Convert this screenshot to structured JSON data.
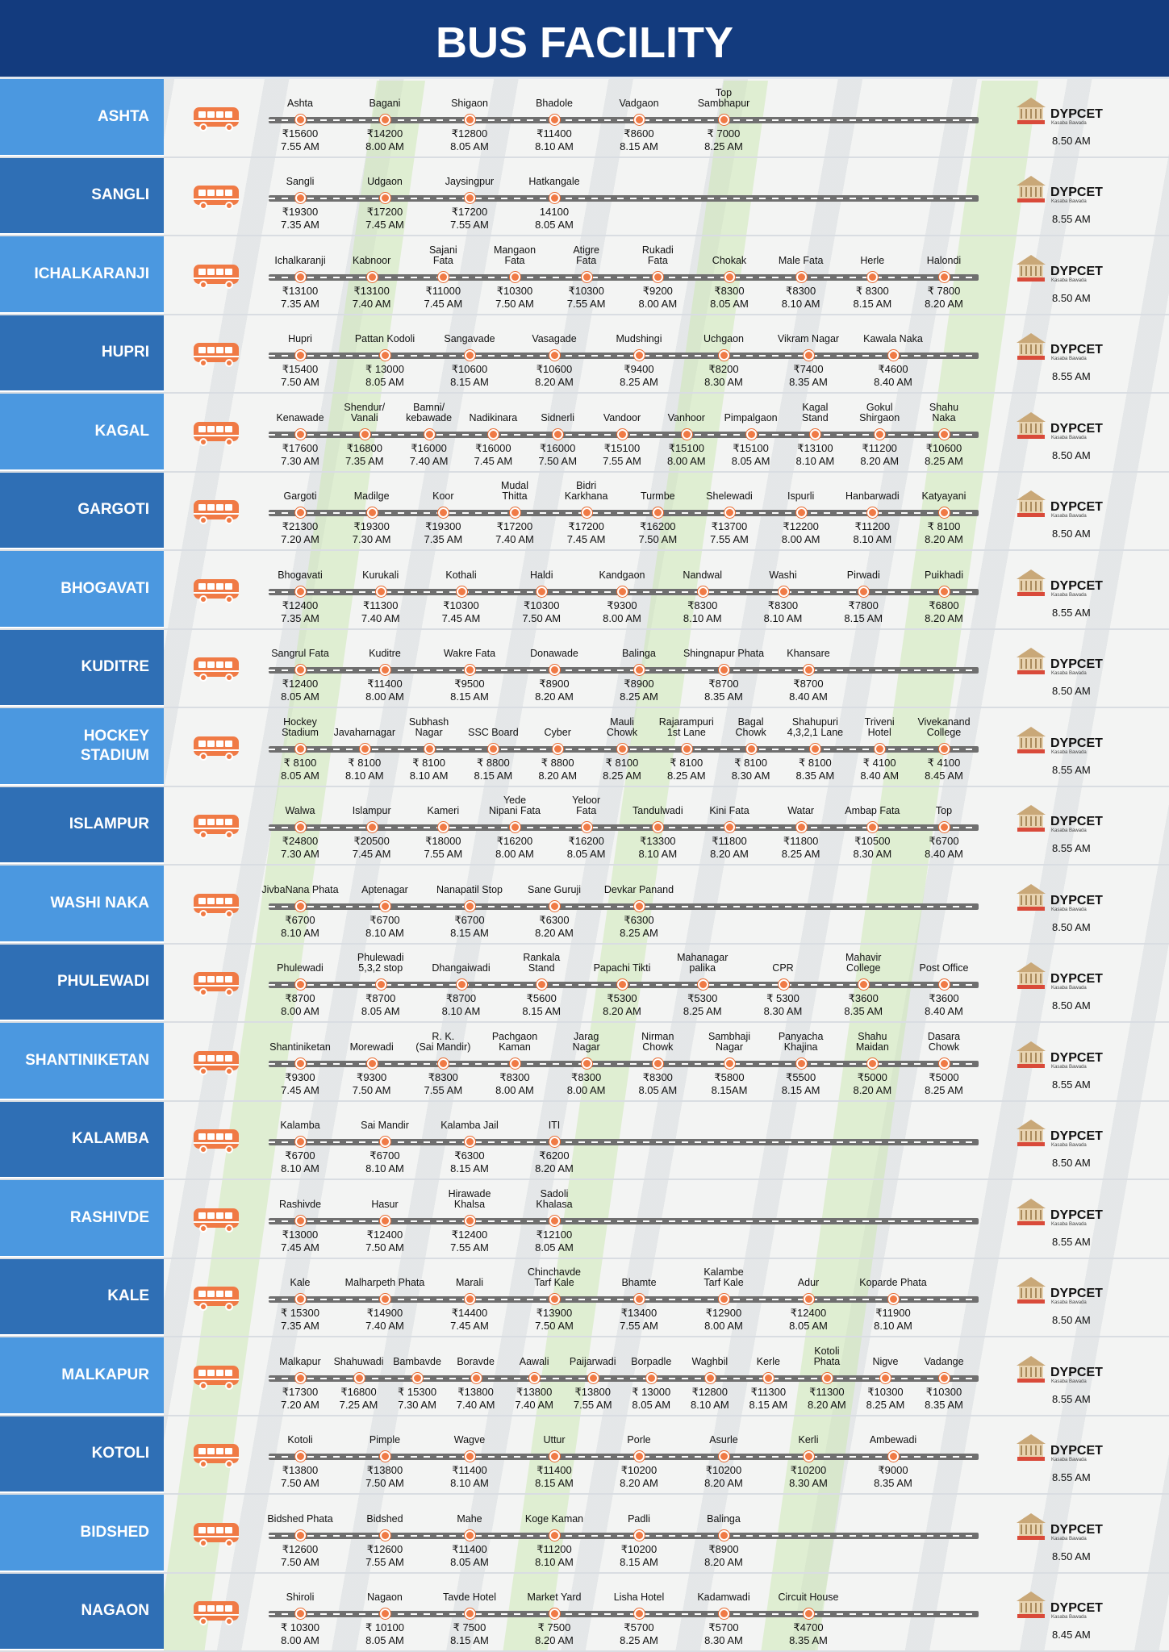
{
  "title": "BUS FACILITY",
  "destination": {
    "name": "DYPCET",
    "place": "Kasaba Bawada"
  },
  "routes": [
    {
      "name": "ASHTA",
      "arrival": "8.50 AM",
      "stops": [
        [
          "Ashta",
          "₹15600",
          "7.55 AM"
        ],
        [
          "Bagani",
          "₹14200",
          "8.00 AM"
        ],
        [
          "Shigaon",
          "₹12800",
          "8.05 AM"
        ],
        [
          "Bhadole",
          "₹11400",
          "8.10 AM"
        ],
        [
          "Vadgaon",
          "₹8600",
          "8.15 AM"
        ],
        [
          "Top\nSambhapur",
          "₹ 7000",
          "8.25 AM"
        ]
      ]
    },
    {
      "name": "SANGLI",
      "arrival": "8.55 AM",
      "stops": [
        [
          "Sangli",
          "₹19300",
          "7.35 AM"
        ],
        [
          "Udgaon",
          "₹17200",
          "7.45 AM"
        ],
        [
          "Jaysingpur",
          "₹17200",
          "7.55 AM"
        ],
        [
          "Hatkangale",
          "14100",
          "8.05 AM"
        ]
      ]
    },
    {
      "name": "ICHALKARANJI",
      "arrival": "8.50 AM",
      "stops": [
        [
          "Ichalkaranji",
          "₹13100",
          "7.35 AM"
        ],
        [
          "Kabnoor",
          "₹13100",
          "7.40 AM"
        ],
        [
          "Sajani\nFata",
          "₹11000",
          "7.45 AM"
        ],
        [
          "Mangaon\nFata",
          "₹10300",
          "7.50 AM"
        ],
        [
          "Atigre\nFata",
          "₹10300",
          "7.55 AM"
        ],
        [
          "Rukadi\nFata",
          "₹9200",
          "8.00 AM"
        ],
        [
          "Chokak",
          "₹8300",
          "8.05 AM"
        ],
        [
          "Male Fata",
          "₹8300",
          "8.10 AM"
        ],
        [
          "Herle",
          "₹ 8300",
          "8.15 AM"
        ],
        [
          "Halondi",
          "₹ 7800",
          "8.20 AM"
        ]
      ]
    },
    {
      "name": "HUPRI",
      "arrival": "8.55 AM",
      "stops": [
        [
          "Hupri",
          "₹15400",
          "7.50 AM"
        ],
        [
          "Pattan Kodoli",
          "₹ 13000",
          "8.05 AM"
        ],
        [
          "Sangavade",
          "₹10600",
          "8.15 AM"
        ],
        [
          "Vasagade",
          "₹10600",
          "8.20 AM"
        ],
        [
          "Mudshingi",
          "₹9400",
          "8.25 AM"
        ],
        [
          "Uchgaon",
          "₹8200",
          "8.30 AM"
        ],
        [
          "Vikram Nagar",
          "₹7400",
          "8.35 AM"
        ],
        [
          "Kawala Naka",
          "₹4600",
          "8.40 AM"
        ]
      ]
    },
    {
      "name": "KAGAL",
      "arrival": "8.50 AM",
      "stops": [
        [
          "Kenawade",
          "₹17600",
          "7.30 AM"
        ],
        [
          "Shendur/\nVanali",
          "₹16800",
          "7.35 AM"
        ],
        [
          "Bamni/\nkebawade",
          "₹16000",
          "7.40 AM"
        ],
        [
          "Nadikinara",
          "₹16000",
          "7.45 AM"
        ],
        [
          "Sidnerli",
          "₹16000",
          "7.50 AM"
        ],
        [
          "Vandoor",
          "₹15100",
          "7.55 AM"
        ],
        [
          "Vanhoor",
          "₹15100",
          "8.00 AM"
        ],
        [
          "Pimpalgaon",
          "₹15100",
          "8.05 AM"
        ],
        [
          "Kagal\nStand",
          "₹13100",
          "8.10 AM"
        ],
        [
          "Gokul\nShirgaon",
          "₹11200",
          "8.20 AM"
        ],
        [
          "Shahu\nNaka",
          "₹10600",
          "8.25 AM"
        ]
      ]
    },
    {
      "name": "GARGOTI",
      "arrival": "8.50 AM",
      "stops": [
        [
          "Gargoti",
          "₹21300",
          "7.20 AM"
        ],
        [
          "Madilge",
          "₹19300",
          "7.30 AM"
        ],
        [
          "Koor",
          "₹19300",
          "7.35 AM"
        ],
        [
          "Mudal\nThitta",
          "₹17200",
          "7.40 AM"
        ],
        [
          "Bidri\nKarkhana",
          "₹17200",
          "7.45 AM"
        ],
        [
          "Turmbe",
          "₹16200",
          "7.50 AM"
        ],
        [
          "Shelewadi",
          "₹13700",
          "7.55 AM"
        ],
        [
          "Ispurli",
          "₹12200",
          "8.00 AM"
        ],
        [
          "Hanbarwadi",
          "₹11200",
          "8.10 AM"
        ],
        [
          "Katyayani",
          "₹ 8100",
          "8.20 AM"
        ]
      ]
    },
    {
      "name": "BHOGAVATI",
      "arrival": "8.55 AM",
      "stops": [
        [
          "Bhogavati",
          "₹12400",
          "7.35 AM"
        ],
        [
          "Kurukali",
          "₹11300",
          "7.40 AM"
        ],
        [
          "Kothali",
          "₹10300",
          "7.45 AM"
        ],
        [
          "Haldi",
          "₹10300",
          "7.50 AM"
        ],
        [
          "Kandgaon",
          "₹9300",
          "8.00 AM"
        ],
        [
          "Nandwal",
          "₹8300",
          "8.10 AM"
        ],
        [
          "Washi",
          "₹8300",
          "8.10 AM"
        ],
        [
          "Pirwadi",
          "₹7800",
          "8.15 AM"
        ],
        [
          "Puikhadi",
          "₹6800",
          "8.20 AM"
        ]
      ]
    },
    {
      "name": "KUDITRE",
      "arrival": "8.50 AM",
      "stops": [
        [
          "Sangrul Fata",
          "₹12400",
          "8.05 AM"
        ],
        [
          "Kuditre",
          "₹11400",
          "8.00 AM"
        ],
        [
          "Wakre Fata",
          "₹9500",
          "8.15 AM"
        ],
        [
          "Donawade",
          "₹8900",
          "8.20 AM"
        ],
        [
          "Balinga",
          "₹8900",
          "8.25 AM"
        ],
        [
          "Shingnapur Phata",
          "₹8700",
          "8.35 AM"
        ],
        [
          "Khansare",
          "₹8700",
          "8.40 AM"
        ]
      ]
    },
    {
      "name": "HOCKEY\nSTADIUM",
      "arrival": "8.55 AM",
      "stops": [
        [
          "Hockey\nStadium",
          "₹ 8100",
          "8.05 AM"
        ],
        [
          "Javaharnagar",
          "₹ 8100",
          "8.10 AM"
        ],
        [
          "Subhash\nNagar",
          "₹ 8100",
          "8.10 AM"
        ],
        [
          "SSC Board",
          "₹ 8800",
          "8.15 AM"
        ],
        [
          "Cyber",
          "₹ 8800",
          "8.20 AM"
        ],
        [
          "Mauli\nChowk",
          "₹ 8100",
          "8.25 AM"
        ],
        [
          "Rajarampuri\n1st Lane",
          "₹ 8100",
          "8.25 AM"
        ],
        [
          "Bagal\nChowk",
          "₹ 8100",
          "8.30 AM"
        ],
        [
          "Shahupuri\n4,3,2,1 Lane",
          "₹ 8100",
          "8.35 AM"
        ],
        [
          "Triveni\nHotel",
          "₹ 4100",
          "8.40 AM"
        ],
        [
          "Vivekanand\nCollege",
          "₹ 4100",
          "8.45 AM"
        ]
      ]
    },
    {
      "name": "ISLAMPUR",
      "arrival": "8.55 AM",
      "stops": [
        [
          "Walwa",
          "₹24800",
          "7.30 AM"
        ],
        [
          "Islampur",
          "₹20500",
          "7.45 AM"
        ],
        [
          "Kameri",
          "₹18000",
          "7.55 AM"
        ],
        [
          "Yede\nNipani Fata",
          "₹16200",
          "8.00 AM"
        ],
        [
          "Yeloor\nFata",
          "₹16200",
          "8.05 AM"
        ],
        [
          "Tandulwadi",
          "₹13300",
          "8.10 AM"
        ],
        [
          "Kini Fata",
          "₹11800",
          "8.20 AM"
        ],
        [
          "Watar",
          "₹11800",
          "8.25 AM"
        ],
        [
          "Ambap Fata",
          "₹10500",
          "8.30 AM"
        ],
        [
          "Top",
          "₹6700",
          "8.40 AM"
        ]
      ]
    },
    {
      "name": "WASHI NAKA",
      "arrival": "8.50 AM",
      "stops": [
        [
          "JivbaNana Phata",
          "₹6700",
          "8.10 AM"
        ],
        [
          "Aptenagar",
          "₹6700",
          "8.10 AM"
        ],
        [
          "Nanapatil Stop",
          "₹6700",
          "8.15 AM"
        ],
        [
          "Sane Guruji",
          "₹6300",
          "8.20 AM"
        ],
        [
          "Devkar Panand",
          "₹6300",
          "8.25 AM"
        ]
      ]
    },
    {
      "name": "PHULEWADI",
      "arrival": "8.50 AM",
      "stops": [
        [
          "Phulewadi",
          "₹8700",
          "8.00 AM"
        ],
        [
          "Phulewadi\n5,3,2 stop",
          "₹8700",
          "8.05 AM"
        ],
        [
          "Dhangaiwadi",
          "₹8700",
          "8.10 AM"
        ],
        [
          "Rankala\nStand",
          "₹5600",
          "8.15 AM"
        ],
        [
          "Papachi Tikti",
          "₹5300",
          "8.20 AM"
        ],
        [
          "Mahanagar\npalika",
          "₹5300",
          "8.25 AM"
        ],
        [
          "CPR",
          "₹ 5300",
          "8.30 AM"
        ],
        [
          "Mahavir\nCollege",
          "₹3600",
          "8.35 AM"
        ],
        [
          "Post Office",
          "₹3600",
          "8.40 AM"
        ]
      ]
    },
    {
      "name": "SHANTINIKETAN",
      "arrival": "8.55 AM",
      "stops": [
        [
          "Shantiniketan",
          "₹9300",
          "7.45 AM"
        ],
        [
          "Morewadi",
          "₹9300",
          "7.50 AM"
        ],
        [
          "R. K.\n(Sai Mandir)",
          "₹8300",
          "7.55 AM"
        ],
        [
          "Pachgaon\nKaman",
          "₹8300",
          "8.00 AM"
        ],
        [
          "Jarag\nNagar",
          "₹8300",
          "8.00 AM"
        ],
        [
          "Nirman\nChowk",
          "₹8300",
          "8.05 AM"
        ],
        [
          "Sambhaji\nNagar",
          "₹5800",
          "8.15AM"
        ],
        [
          "Panyacha\nKhajina",
          "₹5500",
          "8.15 AM"
        ],
        [
          "Shahu\nMaidan",
          "₹5000",
          "8.20 AM"
        ],
        [
          "Dasara\nChowk",
          "₹5000",
          "8.25 AM"
        ]
      ]
    },
    {
      "name": "KALAMBA",
      "arrival": "8.50 AM",
      "stops": [
        [
          "Kalamba",
          "₹6700",
          "8.10 AM"
        ],
        [
          "Sai Mandir",
          "₹6700",
          "8.10 AM"
        ],
        [
          "Kalamba Jail",
          "₹6300",
          "8.15 AM"
        ],
        [
          "ITI",
          "₹6200",
          "8.20 AM"
        ]
      ]
    },
    {
      "name": "RASHIVDE",
      "arrival": "8.55 AM",
      "stops": [
        [
          "Rashivde",
          "₹13000",
          "7.45 AM"
        ],
        [
          "Hasur",
          "₹12400",
          "7.50 AM"
        ],
        [
          "Hirawade\nKhalsa",
          "₹12400",
          "7.55 AM"
        ],
        [
          "Sadoli\nKhalasa",
          "₹12100",
          "8.05 AM"
        ]
      ]
    },
    {
      "name": "KALE",
      "arrival": "8.50 AM",
      "stops": [
        [
          "Kale",
          "₹ 15300",
          "7.35 AM"
        ],
        [
          "Malharpeth Phata",
          "₹14900",
          "7.40 AM"
        ],
        [
          "Marali",
          "₹14400",
          "7.45 AM"
        ],
        [
          "Chinchavde\nTarf Kale",
          "₹13900",
          "7.50 AM"
        ],
        [
          "Bhamte",
          "₹13400",
          "7.55 AM"
        ],
        [
          "Kalambe\nTarf Kale",
          "₹12900",
          "8.00 AM"
        ],
        [
          "Adur",
          "₹12400",
          "8.05 AM"
        ],
        [
          "Koparde Phata",
          "₹11900",
          "8.10 AM"
        ]
      ]
    },
    {
      "name": "MALKAPUR",
      "arrival": "8.55 AM",
      "stops": [
        [
          "Malkapur",
          "₹17300",
          "7.20 AM"
        ],
        [
          "Shahuwadi",
          "₹16800",
          "7.25 AM"
        ],
        [
          "Bambavde",
          "₹ 15300",
          "7.30 AM"
        ],
        [
          "Boravde",
          "₹13800",
          "7.40 AM"
        ],
        [
          "Aawali",
          "₹13800",
          "7.40 AM"
        ],
        [
          "Paijarwadi",
          "₹13800",
          "7.55 AM"
        ],
        [
          "Borpadle",
          "₹ 13000",
          "8.05 AM"
        ],
        [
          "Waghbil",
          "₹12800",
          "8.10 AM"
        ],
        [
          "Kerle",
          "₹11300",
          "8.15 AM"
        ],
        [
          "Kotoli\nPhata",
          "₹11300",
          "8.20 AM"
        ],
        [
          "Nigve",
          "₹10300",
          "8.25 AM"
        ],
        [
          "Vadange",
          "₹10300",
          "8.35 AM"
        ]
      ]
    },
    {
      "name": "KOTOLI",
      "arrival": "8.55 AM",
      "stops": [
        [
          "Kotoli",
          "₹13800",
          "7.50 AM"
        ],
        [
          "Pimple",
          "₹13800",
          "7.50 AM"
        ],
        [
          "Wagve",
          "₹11400",
          "8.10 AM"
        ],
        [
          "Uttur",
          "₹11400",
          "8.15 AM"
        ],
        [
          "Porle",
          "₹10200",
          "8.20 AM"
        ],
        [
          "Asurle",
          "₹10200",
          "8.20 AM"
        ],
        [
          "Kerli",
          "₹10200",
          "8.30 AM"
        ],
        [
          "Ambewadi",
          "₹9000",
          "8.35 AM"
        ]
      ]
    },
    {
      "name": "BIDSHED",
      "arrival": "8.50 AM",
      "stops": [
        [
          "Bidshed Phata",
          "₹12600",
          "7.50 AM"
        ],
        [
          "Bidshed",
          "₹12600",
          "7.55 AM"
        ],
        [
          "Mahe",
          "₹11400",
          "8.05 AM"
        ],
        [
          "Koge Kaman",
          "₹11200",
          "8.10 AM"
        ],
        [
          "Padli",
          "₹10200",
          "8.15 AM"
        ],
        [
          "Balinga",
          "₹8900",
          "8.20 AM"
        ]
      ]
    },
    {
      "name": "NAGAON",
      "arrival": "8.45 AM",
      "stops": [
        [
          "Shiroli",
          "₹ 10300",
          "8.00 AM"
        ],
        [
          "Nagaon",
          "₹ 10100",
          "8.05 AM"
        ],
        [
          "Tavde Hotel",
          "₹ 7500",
          "8.15 AM"
        ],
        [
          "Market Yard",
          "₹ 7500",
          "8.20 AM"
        ],
        [
          "Lisha Hotel",
          "₹5700",
          "8.25 AM"
        ],
        [
          "Kadamwadi",
          "₹5700",
          "8.30 AM"
        ],
        [
          "Circuit House",
          "₹4700",
          "8.35 AM"
        ]
      ]
    }
  ]
}
